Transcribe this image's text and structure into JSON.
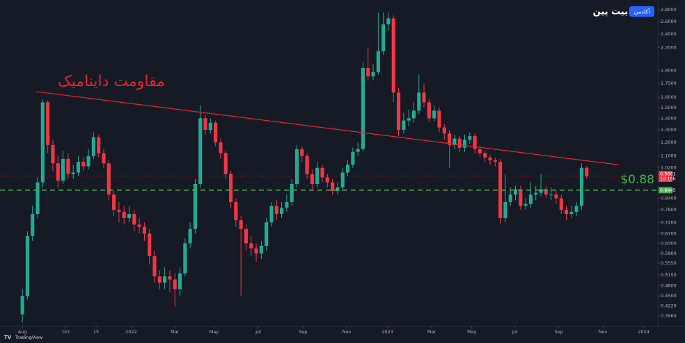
{
  "logo": {
    "name": "بیت پین",
    "subtitle": "آکادمی"
  },
  "footer": "TradingView",
  "chart_data": {
    "type": "candlestick",
    "log_scale": true,
    "grid": false,
    "up_color": "#22ab94",
    "down_color": "#f23645",
    "annotation": "مقاومت داینامیک",
    "trendline": {
      "x": [
        2.7,
        117.3
      ],
      "y": [
        1.66,
        1.04
      ],
      "color": "#e8232f"
    },
    "support": {
      "value": 0.8845,
      "label": "0.8845",
      "color": "#4caf50",
      "note": "$0.88"
    },
    "last_price": {
      "value": 0.9661,
      "label": "0.9661",
      "countdown": "1d 15h"
    },
    "xlim": [
      -4.4,
      125
    ],
    "xticks": [
      {
        "value": 0,
        "label": "Aug"
      },
      {
        "value": 8.6,
        "label": "Oct"
      },
      {
        "value": 14.5,
        "label": "15"
      },
      {
        "value": 21.4,
        "label": "2022"
      },
      {
        "value": 30,
        "label": "Mar"
      },
      {
        "value": 37.7,
        "label": "May"
      },
      {
        "value": 46.4,
        "label": "Jul"
      },
      {
        "value": 55.2,
        "label": "Sep"
      },
      {
        "value": 63.8,
        "label": "Nov"
      },
      {
        "value": 71.8,
        "label": "2023"
      },
      {
        "value": 80.5,
        "label": "Mar"
      },
      {
        "value": 88.4,
        "label": "May"
      },
      {
        "value": 96.9,
        "label": "Jul"
      },
      {
        "value": 105.5,
        "label": "Sep"
      },
      {
        "value": 114.2,
        "label": "Nov"
      },
      {
        "value": 122.2,
        "label": "2024"
      }
    ],
    "ylim": [
      0.384,
      2.98
    ],
    "yticks": [
      {
        "value": 2.8,
        "label": "2.8000"
      },
      {
        "value": 2.6,
        "label": "2.6000"
      },
      {
        "value": 2.4,
        "label": "2.4000"
      },
      {
        "value": 2.2,
        "label": "2.2000"
      },
      {
        "value": 1.9,
        "label": "1.9000"
      },
      {
        "value": 1.75,
        "label": "1.7500"
      },
      {
        "value": 1.6,
        "label": "1.6000"
      },
      {
        "value": 1.5,
        "label": "1.5000"
      },
      {
        "value": 1.4,
        "label": "1.4000"
      },
      {
        "value": 1.3,
        "label": "1.3000"
      },
      {
        "value": 1.2,
        "label": "1.2000"
      },
      {
        "value": 1.1,
        "label": "1.1000"
      },
      {
        "value": 1.02,
        "label": "1.0200"
      },
      {
        "value": 0.84,
        "label": "0.8400"
      },
      {
        "value": 0.78,
        "label": "0.7800"
      },
      {
        "value": 0.72,
        "label": "0.7200"
      },
      {
        "value": 0.67,
        "label": "0.6700"
      },
      {
        "value": 0.63,
        "label": "0.6300"
      },
      {
        "value": 0.59,
        "label": "0.5900"
      },
      {
        "value": 0.555,
        "label": "0.5550"
      },
      {
        "value": 0.515,
        "label": "0.5150"
      },
      {
        "value": 0.48,
        "label": "0.4800"
      },
      {
        "value": 0.45,
        "label": "0.4500"
      },
      {
        "value": 0.422,
        "label": "0.4220"
      },
      {
        "value": 0.396,
        "label": "0.3960"
      }
    ],
    "open": [
      0.4,
      0.45,
      0.66,
      0.76,
      0.93,
      1.55,
      1.18,
      1.05,
      0.94,
      1.08,
      0.98,
      0.99,
      1.06,
      1.03,
      1.1,
      1.24,
      1.12,
      1.05,
      0.86,
      0.78,
      0.77,
      0.74,
      0.76,
      0.71,
      0.7,
      0.67,
      0.58,
      0.51,
      0.49,
      0.51,
      0.5,
      0.47,
      0.52,
      0.63,
      0.69,
      0.92,
      1.4,
      1.3,
      1.36,
      1.2,
      1.12,
      0.98,
      0.82,
      0.73,
      0.69,
      0.63,
      0.61,
      0.59,
      0.62,
      0.72,
      0.8,
      0.76,
      0.79,
      0.82,
      0.92,
      1.15,
      1.1,
      0.98,
      0.92,
      1.02,
      0.96,
      0.93,
      0.88,
      0.9,
      0.99,
      1.04,
      1.13,
      1.15,
      1.93,
      1.83,
      1.88,
      2.15,
      2.55,
      2.65,
      1.65,
      1.3,
      1.38,
      1.4,
      1.47,
      1.65,
      1.55,
      1.4,
      1.47,
      1.32,
      1.27,
      1.18,
      1.23,
      1.16,
      1.22,
      1.25,
      1.15,
      1.12,
      1.09,
      1.07,
      1.06,
      0.74,
      0.82,
      0.86,
      0.89,
      0.8,
      0.81,
      0.86,
      0.87,
      0.89,
      0.86,
      0.86,
      0.84,
      0.78,
      0.76,
      0.77,
      0.8,
      1.02
    ],
    "high": [
      0.47,
      0.68,
      0.8,
      0.96,
      1.58,
      1.57,
      1.22,
      1.1,
      1.14,
      1.12,
      1.04,
      1.1,
      1.09,
      1.15,
      1.28,
      1.26,
      1.15,
      1.07,
      0.88,
      0.82,
      0.8,
      0.8,
      0.78,
      0.74,
      0.72,
      0.69,
      0.6,
      0.53,
      0.54,
      0.53,
      0.52,
      0.54,
      0.65,
      0.72,
      0.95,
      1.52,
      1.43,
      1.4,
      1.38,
      1.23,
      1.14,
      1.0,
      0.84,
      0.75,
      0.71,
      0.66,
      0.63,
      0.64,
      0.74,
      0.82,
      0.83,
      0.82,
      0.86,
      0.95,
      1.18,
      1.17,
      1.12,
      1.01,
      1.06,
      1.04,
      0.98,
      0.95,
      0.93,
      1.02,
      1.07,
      1.16,
      1.2,
      2.0,
      2.2,
      1.98,
      2.75,
      2.75,
      2.75,
      2.7,
      1.7,
      1.45,
      1.48,
      1.55,
      1.85,
      1.75,
      1.58,
      1.52,
      1.5,
      1.35,
      1.3,
      1.26,
      1.25,
      1.26,
      1.28,
      1.27,
      1.17,
      1.14,
      1.11,
      1.09,
      1.08,
      0.98,
      0.9,
      0.91,
      0.91,
      0.84,
      0.93,
      0.91,
      0.98,
      0.91,
      0.9,
      0.88,
      0.86,
      0.8,
      0.8,
      0.82,
      1.05,
      1.03
    ],
    "low": [
      0.38,
      0.44,
      0.64,
      0.74,
      0.9,
      1.12,
      1.0,
      0.9,
      0.92,
      0.95,
      0.95,
      0.97,
      1.0,
      1.01,
      1.08,
      1.09,
      1.02,
      0.83,
      0.75,
      0.72,
      0.71,
      0.72,
      0.68,
      0.67,
      0.64,
      0.55,
      0.49,
      0.47,
      0.47,
      0.46,
      0.42,
      0.45,
      0.51,
      0.61,
      0.67,
      0.9,
      1.26,
      1.27,
      1.17,
      1.08,
      0.95,
      0.79,
      0.7,
      0.45,
      0.6,
      0.58,
      0.56,
      0.57,
      0.6,
      0.7,
      0.73,
      0.74,
      0.77,
      0.8,
      0.9,
      1.06,
      0.95,
      0.89,
      0.9,
      0.93,
      0.9,
      0.86,
      0.86,
      0.88,
      0.97,
      1.02,
      1.1,
      1.13,
      1.78,
      1.79,
      1.85,
      2.1,
      2.45,
      1.55,
      1.25,
      1.27,
      1.33,
      1.36,
      1.44,
      1.5,
      1.37,
      1.37,
      1.28,
      1.22,
      1.02,
      1.15,
      1.13,
      1.13,
      1.19,
      1.12,
      1.09,
      1.06,
      1.04,
      1.03,
      0.71,
      0.72,
      0.8,
      0.83,
      0.78,
      0.78,
      0.79,
      0.83,
      0.85,
      0.84,
      0.83,
      0.81,
      0.76,
      0.73,
      0.74,
      0.75,
      0.78,
      0.95
    ],
    "close": [
      0.45,
      0.66,
      0.76,
      0.93,
      1.55,
      1.18,
      1.05,
      0.94,
      1.08,
      0.98,
      0.99,
      1.06,
      1.03,
      1.1,
      1.24,
      1.12,
      1.05,
      0.86,
      0.78,
      0.77,
      0.74,
      0.76,
      0.71,
      0.7,
      0.67,
      0.58,
      0.51,
      0.49,
      0.51,
      0.5,
      0.47,
      0.52,
      0.63,
      0.69,
      0.92,
      1.4,
      1.3,
      1.36,
      1.2,
      1.12,
      0.98,
      0.82,
      0.73,
      0.69,
      0.63,
      0.61,
      0.59,
      0.62,
      0.72,
      0.8,
      0.76,
      0.79,
      0.82,
      0.92,
      1.15,
      1.1,
      0.98,
      0.92,
      1.02,
      0.96,
      0.93,
      0.88,
      0.9,
      0.99,
      1.04,
      1.13,
      1.15,
      1.93,
      1.83,
      1.88,
      2.15,
      2.55,
      2.65,
      1.65,
      1.3,
      1.38,
      1.4,
      1.47,
      1.65,
      1.55,
      1.4,
      1.47,
      1.32,
      1.27,
      1.18,
      1.23,
      1.16,
      1.22,
      1.25,
      1.15,
      1.12,
      1.09,
      1.07,
      1.06,
      0.74,
      0.82,
      0.86,
      0.89,
      0.8,
      0.81,
      0.86,
      0.87,
      0.89,
      0.86,
      0.86,
      0.84,
      0.78,
      0.76,
      0.77,
      0.8,
      1.02,
      0.9661
    ]
  }
}
